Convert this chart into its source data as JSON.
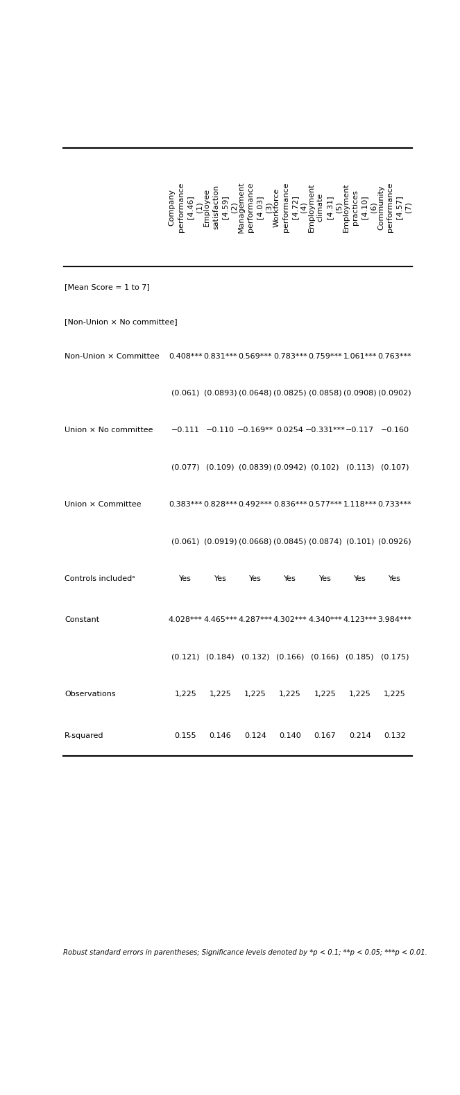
{
  "col_headers_main": [
    "Company\nperformance",
    "Employee\nsatisfaction",
    "Management\nperformance",
    "Workforce\nperformance",
    "Employment\nclimate",
    "Employment\npractices",
    "Community\nperformance"
  ],
  "col_headers_sub": [
    "[4.46]",
    "[4.59]",
    "[4.03]",
    "[4.72]",
    "[4.31]",
    "[4.10]",
    "[4.57]"
  ],
  "col_headers_num": [
    "(1)",
    "(2)",
    "(3)",
    "(4)",
    "(5)",
    "(6)",
    "(7)"
  ],
  "row_labels": [
    "[Mean Score = 1 to 7]",
    "[Non-Union × No committee]",
    "Non-Union × Committee",
    "",
    "Union × No committee",
    "",
    "Union × Committee",
    "",
    "Controls includedᵃ",
    "Constant",
    "",
    "Observations",
    "R-squared"
  ],
  "data": [
    [
      "",
      "",
      "",
      "",
      "",
      "",
      ""
    ],
    [
      "",
      "",
      "",
      "",
      "",
      "",
      ""
    ],
    [
      "0.408***",
      "0.831***",
      "0.569***",
      "0.783***",
      "0.759***",
      "1.061***",
      "0.763***"
    ],
    [
      "(0.061)",
      "(0.0893)",
      "(0.0648)",
      "(0.0825)",
      "(0.0858)",
      "(0.0908)",
      "(0.0902)"
    ],
    [
      "−0.111",
      "−0.110",
      "−0.169**",
      "0.0254",
      "−0.331***",
      "−0.117",
      "−0.160"
    ],
    [
      "(0.077)",
      "(0.109)",
      "(0.0839)",
      "(0.0942)",
      "(0.102)",
      "(0.113)",
      "(0.107)"
    ],
    [
      "0.383***",
      "0.828***",
      "0.492***",
      "0.836***",
      "0.577***",
      "1.118***",
      "0.733***"
    ],
    [
      "(0.061)",
      "(0.0919)",
      "(0.0668)",
      "(0.0845)",
      "(0.0874)",
      "(0.101)",
      "(0.0926)"
    ],
    [
      "Yes",
      "Yes",
      "Yes",
      "Yes",
      "Yes",
      "Yes",
      "Yes"
    ],
    [
      "4.028***",
      "4.465***",
      "4.287***",
      "4.302***",
      "4.340***",
      "4.123***",
      "3.984***"
    ],
    [
      "(0.121)",
      "(0.184)",
      "(0.132)",
      "(0.166)",
      "(0.166)",
      "(0.185)",
      "(0.175)"
    ],
    [
      "1,225",
      "1,225",
      "1,225",
      "1,225",
      "1,225",
      "1,225",
      "1,225"
    ],
    [
      "0.155",
      "0.146",
      "0.124",
      "0.140",
      "0.167",
      "0.214",
      "0.132"
    ]
  ],
  "footnote": "Robust standard errors in parentheses; Significance levels denoted by *p < 0.1; **p < 0.05; ***p < 0.01.",
  "background_color": "#ffffff",
  "text_color": "#000000",
  "font_size": 8.0,
  "header_font_size": 8.0
}
